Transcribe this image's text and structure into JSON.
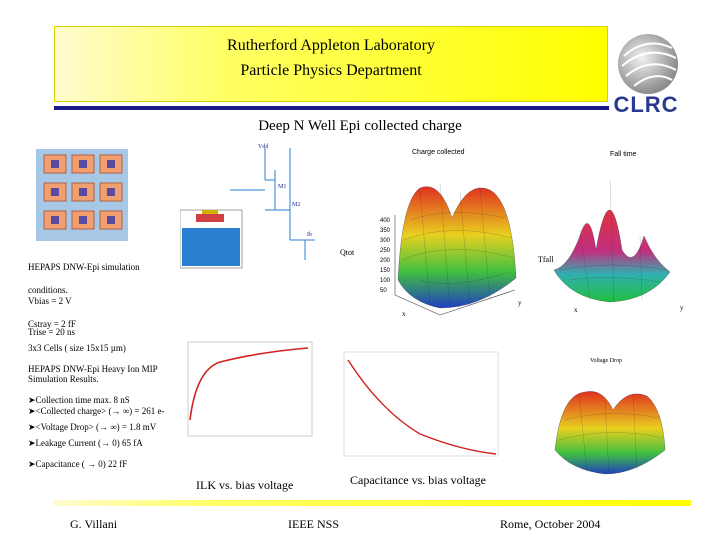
{
  "header": {
    "line1": "Rutherford Appleton Laboratory",
    "line2": "Particle Physics Department",
    "logo_text": "CLRC"
  },
  "section_title": "Deep N Well Epi collected charge",
  "notes": [
    "HEPAPS DNW-Epi simulation",
    "conditions.",
    "Vbias = 2 V",
    "Cstray = 2 fF",
    "Trise = 20 ns",
    "3x3 Cells ( size 15x15 µm)",
    "HEPAPS DNW-Epi Heavy Ion MIP",
    "Simulation Results.",
    "➤Collection time max. 8 nS",
    "➤<Collected charge> (→ ∞) = 261 e-",
    "➤<Voltage Drop> (→ ∞) = 1.8 mV",
    "➤Leakage Current (→ 0) 65 fA",
    "➤Capacitance ( → 0) 22 fF"
  ],
  "plots": {
    "charge_title": "Charge collected",
    "charge_zlabel": "Qtot",
    "charge_ticks": [
      "400",
      "350",
      "300",
      "250",
      "200",
      "150",
      "100",
      "50"
    ],
    "charge_x_axis": "x",
    "charge_y_axis": "y",
    "fall_title": "Fall time",
    "fall_zlabel": "Tfall",
    "fall_x_axis": "x",
    "fall_y_axis": "y",
    "voltage_title": "Voltage Drop",
    "circuit_labels": [
      "Vdd",
      "M1",
      "M2",
      "Ib"
    ]
  },
  "captions": {
    "ileak": "ILK vs. bias voltage",
    "capacitance": "Capacitance vs. bias voltage"
  },
  "footer": {
    "author": "G. Villani",
    "venue": "IEEE NSS",
    "location_date": "Rome, October 2004"
  },
  "colors": {
    "header_yellow": "#ffff00",
    "title_bar": "#1a1a8a",
    "logo_blue": "#2b3990"
  }
}
